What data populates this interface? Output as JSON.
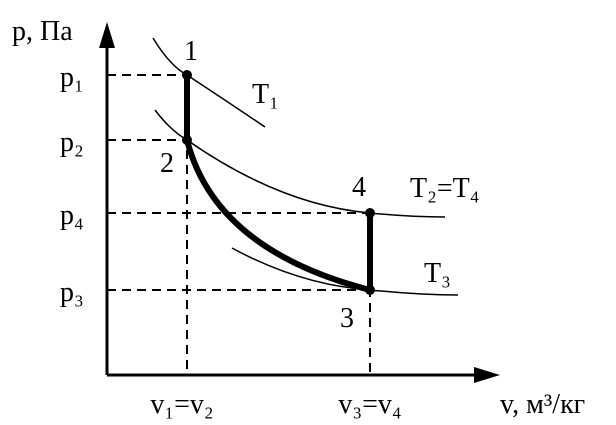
{
  "axes": {
    "y_label": "p, Па",
    "x_label": "v, м³/кг"
  },
  "y_ticks": [
    "p₁",
    "p₂",
    "p₄",
    "p₃"
  ],
  "x_ticks": [
    "v₁=v₂",
    "v₃=v₄"
  ],
  "points": [
    "1",
    "2",
    "3",
    "4"
  ],
  "isotherms": [
    "T₁",
    "T₂=T₄",
    "T₃"
  ]
}
